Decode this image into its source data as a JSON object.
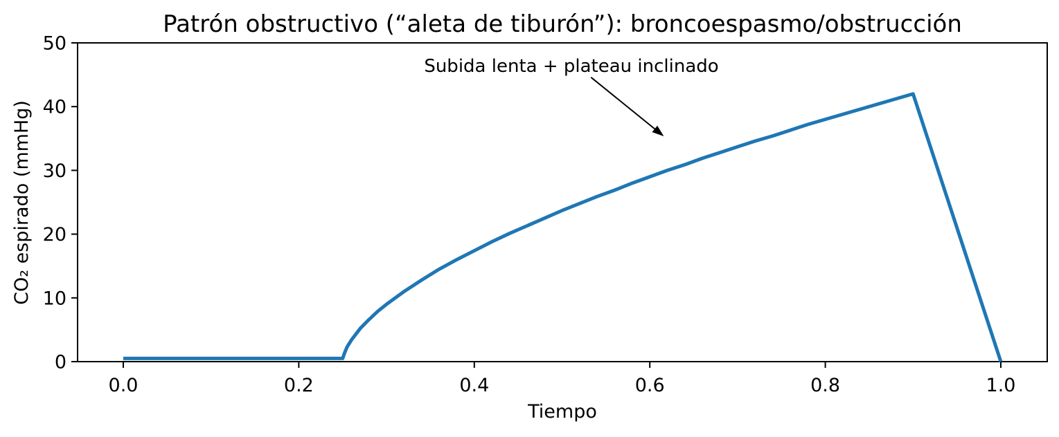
{
  "chart_data": {
    "type": "line",
    "title": "Patrón obstructivo (“aleta de tiburón”): broncoespasmo/obstrucción",
    "xlabel": "Tiempo",
    "ylabel": "CO₂ espirado (mmHg)",
    "xlim": [
      -0.05,
      1.05
    ],
    "ylim": [
      0,
      50
    ],
    "x_ticks": [
      0.0,
      0.2,
      0.4,
      0.6,
      0.8,
      1.0
    ],
    "x_tick_labels": [
      "0.0",
      "0.2",
      "0.4",
      "0.6",
      "0.8",
      "1.0"
    ],
    "y_ticks": [
      0,
      10,
      20,
      30,
      40,
      50
    ],
    "y_tick_labels": [
      "0",
      "10",
      "20",
      "30",
      "40",
      "50"
    ],
    "grid": false,
    "legend": "none",
    "line_color": "#1f77b4",
    "axis_color": "#000000",
    "background_color": "#ffffff",
    "annotation": {
      "text": "Subida lenta + plateau inclinado",
      "text_xy": [
        0.511,
        45.4
      ],
      "arrow_start": [
        0.533,
        44.6
      ],
      "arrow_tip": [
        0.616,
        35.35
      ]
    },
    "series": [
      {
        "name": "CO2 espirado",
        "points": [
          [
            0.0,
            0.5
          ],
          [
            0.05,
            0.5
          ],
          [
            0.1,
            0.5
          ],
          [
            0.15,
            0.5
          ],
          [
            0.2,
            0.5
          ],
          [
            0.25,
            0.5
          ],
          [
            0.252,
            1.3
          ],
          [
            0.255,
            2.3
          ],
          [
            0.26,
            3.4
          ],
          [
            0.27,
            5.2
          ],
          [
            0.28,
            6.6
          ],
          [
            0.29,
            7.9
          ],
          [
            0.3,
            9.0
          ],
          [
            0.32,
            11.0
          ],
          [
            0.34,
            12.8
          ],
          [
            0.36,
            14.5
          ],
          [
            0.38,
            16.0
          ],
          [
            0.4,
            17.4
          ],
          [
            0.42,
            18.8
          ],
          [
            0.44,
            20.1
          ],
          [
            0.46,
            21.3
          ],
          [
            0.48,
            22.5
          ],
          [
            0.5,
            23.7
          ],
          [
            0.52,
            24.8
          ],
          [
            0.54,
            25.9
          ],
          [
            0.56,
            26.9
          ],
          [
            0.58,
            28.0
          ],
          [
            0.6,
            29.0
          ],
          [
            0.62,
            30.0
          ],
          [
            0.64,
            30.9
          ],
          [
            0.66,
            31.9
          ],
          [
            0.68,
            32.8
          ],
          [
            0.7,
            33.7
          ],
          [
            0.72,
            34.6
          ],
          [
            0.74,
            35.4
          ],
          [
            0.76,
            36.3
          ],
          [
            0.78,
            37.2
          ],
          [
            0.8,
            38.0
          ],
          [
            0.82,
            38.8
          ],
          [
            0.84,
            39.6
          ],
          [
            0.86,
            40.4
          ],
          [
            0.88,
            41.2
          ],
          [
            0.9,
            42.0
          ],
          [
            1.0,
            0.0
          ]
        ]
      }
    ]
  }
}
